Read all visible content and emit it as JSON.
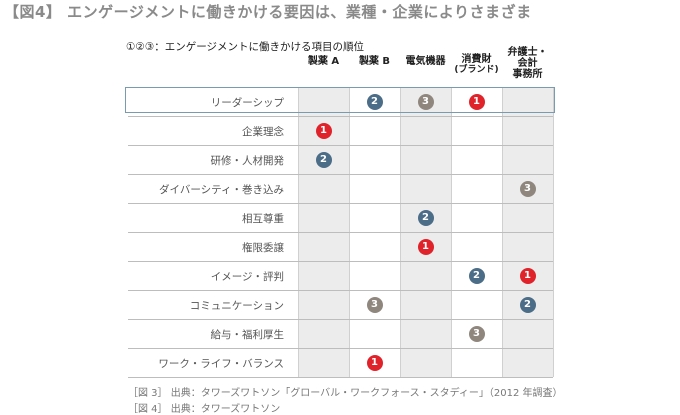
{
  "title": "【図4】 エンゲージメントに働きかける要因は、業種・企業によりさまざま",
  "subtitle": "①②③：エンゲージメントに働きかける項目の順位",
  "columns": [
    {
      "lines": [
        "製薬 A"
      ]
    },
    {
      "lines": [
        "製薬 B"
      ]
    },
    {
      "lines": [
        "電気機器"
      ]
    },
    {
      "lines": [
        "消費財",
        "(ブランド)"
      ]
    },
    {
      "lines": [
        "弁護士・",
        "会計",
        "事務所"
      ]
    }
  ],
  "rows": [
    {
      "label": "リーダーシップ",
      "ranks": [
        null,
        2,
        3,
        1,
        null
      ]
    },
    {
      "label": "企業理念",
      "ranks": [
        1,
        null,
        null,
        null,
        null
      ]
    },
    {
      "label": "研修・人材開発",
      "ranks": [
        2,
        null,
        null,
        null,
        null
      ]
    },
    {
      "label": "ダイバーシティ・巻き込み",
      "ranks": [
        null,
        null,
        null,
        null,
        3
      ]
    },
    {
      "label": "相互尊重",
      "ranks": [
        null,
        null,
        2,
        null,
        null
      ]
    },
    {
      "label": "権限委譲",
      "ranks": [
        null,
        null,
        1,
        null,
        null
      ]
    },
    {
      "label": "イメージ・評判",
      "ranks": [
        null,
        null,
        null,
        2,
        1
      ]
    },
    {
      "label": "コミュニケーション",
      "ranks": [
        null,
        3,
        null,
        null,
        2
      ]
    },
    {
      "label": "給与・福利厚生",
      "ranks": [
        null,
        null,
        null,
        3,
        null
      ]
    },
    {
      "label": "ワーク・ライフ・バランス",
      "ranks": [
        null,
        1,
        null,
        null,
        null
      ]
    }
  ],
  "rank_colors": {
    "1": "#e0222b",
    "2": "#4b6d87",
    "3": "#8f877e"
  },
  "sources": [
    "［図 3］ 出典：タワーズワトソン「グローバル・ワークフォース・スタディー」（2012 年調査）",
    "［図 4］ 出典：タワーズワトソン"
  ]
}
